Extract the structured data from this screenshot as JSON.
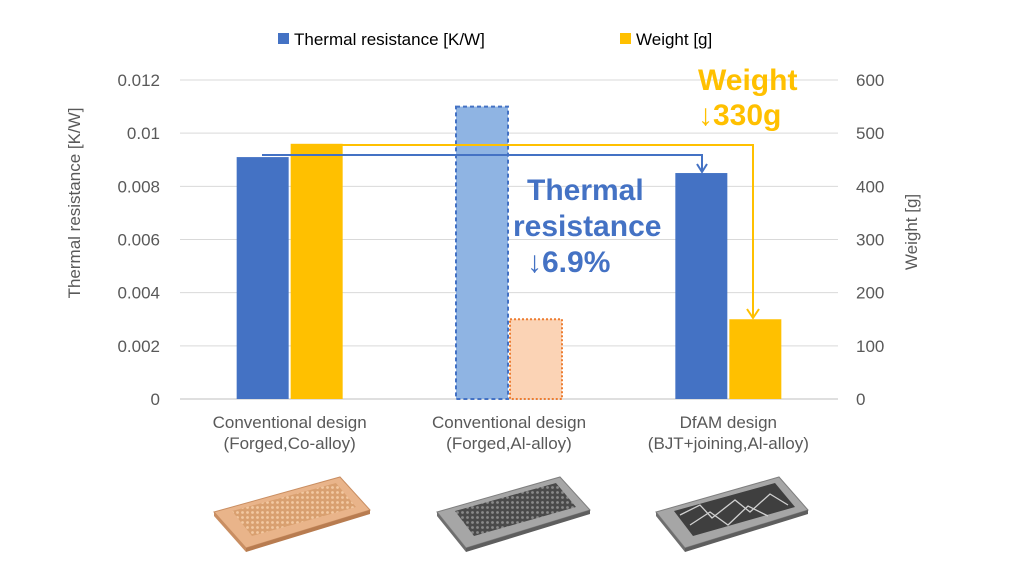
{
  "colors": {
    "thermal": "#4472C4",
    "weight": "#FFC000",
    "thermal_hypothetical": "#8FB4E3",
    "thermal_hypothetical_border": "#4472C4",
    "weight_hypothetical": "#FBD3B5",
    "weight_hypothetical_border": "#ED7D31",
    "grid": "#D9D9D9",
    "text": "#595959"
  },
  "chart_data": {
    "type": "bar",
    "categories": [
      [
        "Conventional design",
        "(Forged,Co-alloy)"
      ],
      [
        "Conventional design",
        "(Forged,Al-alloy)"
      ],
      [
        "DfAM design",
        "(BJT+joining,Al-alloy)"
      ]
    ],
    "series": [
      {
        "name": "Thermal resistance [K/W]",
        "axis": "left",
        "values": [
          0.0091,
          0.011,
          0.0085
        ],
        "hypothetical": [
          false,
          true,
          false
        ]
      },
      {
        "name": "Weight [g]",
        "axis": "right",
        "values": [
          480,
          150,
          150
        ],
        "hypothetical": [
          false,
          true,
          false
        ]
      }
    ],
    "ylabel_left": "Thermal resistance [K/W]",
    "ylabel_right": "Weight [g]",
    "ylim_left": [
      0,
      0.012
    ],
    "ylim_right": [
      0,
      600
    ],
    "yticks_left": [
      "0",
      "0.002",
      "0.004",
      "0.006",
      "0.008",
      "0.01",
      "0.012"
    ],
    "yticks_right": [
      "0",
      "100",
      "200",
      "300",
      "400",
      "500",
      "600"
    ],
    "grid": true,
    "legend_position": "top",
    "annotations": {
      "weight": {
        "line1": "Weight",
        "line2": "↓330g"
      },
      "thermal": {
        "line1": "Thermal",
        "line2": "resistance",
        "line3": "↓6.9%"
      }
    }
  },
  "thumbnails": [
    {
      "name": "copper-heat-sink-image",
      "color": "#E9B48A"
    },
    {
      "name": "aluminum-heat-sink-image",
      "color": "#8C8C8C"
    },
    {
      "name": "dfam-heat-sink-image",
      "color": "#7F7F7F"
    }
  ]
}
